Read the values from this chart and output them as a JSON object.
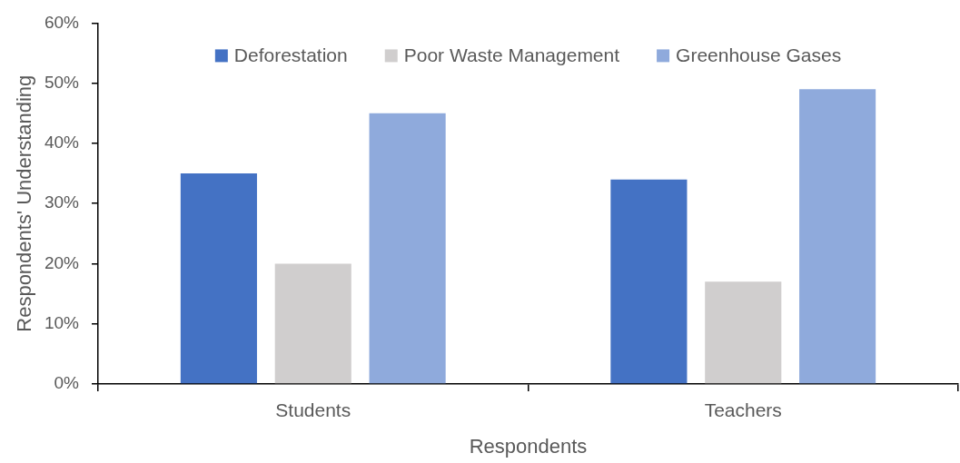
{
  "chart_data": {
    "type": "bar",
    "xlabel": "Respondents",
    "ylabel": "Respondents' Understanding",
    "categories": [
      "Students",
      "Teachers"
    ],
    "series": [
      {
        "name": "Deforestation",
        "color": "#4472c4",
        "values": [
          35,
          34
        ]
      },
      {
        "name": "Poor Waste Management",
        "color": "#d0cece",
        "values": [
          20,
          17
        ]
      },
      {
        "name": "Greenhouse Gases",
        "color": "#8faadc",
        "values": [
          45,
          49
        ]
      }
    ],
    "ylim": [
      0,
      60
    ],
    "yticks": [
      {
        "value": 0,
        "label": "0%"
      },
      {
        "value": 10,
        "label": "10%"
      },
      {
        "value": 20,
        "label": "20%"
      },
      {
        "value": 30,
        "label": "30%"
      },
      {
        "value": 40,
        "label": "40%"
      },
      {
        "value": 50,
        "label": "50%"
      },
      {
        "value": 60,
        "label": "60%"
      }
    ],
    "legend": "top"
  }
}
